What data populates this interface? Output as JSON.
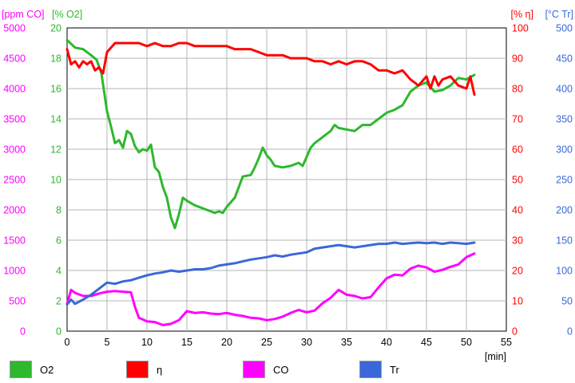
{
  "chart_data": {
    "type": "line",
    "x": {
      "label": "[min]",
      "range": [
        0,
        55
      ],
      "ticks": [
        "0",
        "5",
        "10",
        "15",
        "20",
        "25",
        "30",
        "35",
        "40",
        "45",
        "50",
        "55"
      ]
    },
    "axes": [
      {
        "id": "co",
        "title": "[ppm CO]",
        "side": "left",
        "color": "#ff00ff",
        "range": [
          0,
          5000
        ],
        "ticks": [
          "0",
          "500",
          "1000",
          "1500",
          "2000",
          "2500",
          "3000",
          "3500",
          "4000",
          "4500",
          "5000"
        ]
      },
      {
        "id": "o2",
        "title": "[% O2]",
        "side": "left",
        "color": "#2db82d",
        "range": [
          0,
          20
        ],
        "ticks": [
          "0",
          "2",
          "4",
          "6",
          "8",
          "10",
          "12",
          "14",
          "16",
          "18",
          "20"
        ]
      },
      {
        "id": "eta",
        "title": "[% η]",
        "side": "right",
        "color": "#ff0000",
        "range": [
          0,
          100
        ],
        "ticks": [
          "0",
          "10",
          "20",
          "30",
          "40",
          "50",
          "60",
          "70",
          "80",
          "90",
          "100"
        ]
      },
      {
        "id": "tr",
        "title": "[°C Tr]",
        "side": "right",
        "color": "#3a68d8",
        "range": [
          0,
          500
        ],
        "ticks": [
          "0",
          "50",
          "100",
          "150",
          "200",
          "250",
          "300",
          "350",
          "400",
          "450",
          "500"
        ]
      }
    ],
    "grid": true,
    "legend_position": "bottom",
    "series": [
      {
        "name": "O2",
        "axis": "o2",
        "color": "#2db82d",
        "points": [
          [
            0,
            19.2
          ],
          [
            1,
            18.7
          ],
          [
            2,
            18.6
          ],
          [
            3,
            18.2
          ],
          [
            3.7,
            17.9
          ],
          [
            4.3,
            17.0
          ],
          [
            5,
            14.5
          ],
          [
            5.5,
            13.5
          ],
          [
            6,
            12.4
          ],
          [
            6.5,
            12.6
          ],
          [
            7,
            12.1
          ],
          [
            7.5,
            13.2
          ],
          [
            8,
            13.0
          ],
          [
            8.5,
            12.2
          ],
          [
            9,
            11.8
          ],
          [
            9.5,
            12.0
          ],
          [
            10,
            11.9
          ],
          [
            10.5,
            12.3
          ],
          [
            11,
            10.8
          ],
          [
            11.5,
            10.5
          ],
          [
            12,
            9.5
          ],
          [
            12.5,
            8.8
          ],
          [
            13,
            7.5
          ],
          [
            13.5,
            6.8
          ],
          [
            14,
            7.7
          ],
          [
            14.5,
            8.8
          ],
          [
            15,
            8.6
          ],
          [
            16,
            8.3
          ],
          [
            17,
            8.1
          ],
          [
            18,
            7.9
          ],
          [
            18.5,
            7.8
          ],
          [
            19,
            7.9
          ],
          [
            19.5,
            7.8
          ],
          [
            20,
            8.2
          ],
          [
            21,
            8.8
          ],
          [
            21.5,
            9.5
          ],
          [
            22,
            10.2
          ],
          [
            23,
            10.3
          ],
          [
            23.5,
            10.8
          ],
          [
            24,
            11.4
          ],
          [
            24.5,
            12.1
          ],
          [
            25,
            11.6
          ],
          [
            25.5,
            11.3
          ],
          [
            26,
            10.9
          ],
          [
            27,
            10.8
          ],
          [
            28,
            10.9
          ],
          [
            29,
            11.1
          ],
          [
            29.5,
            10.9
          ],
          [
            30,
            11.5
          ],
          [
            30.5,
            12.1
          ],
          [
            31,
            12.4
          ],
          [
            32,
            12.8
          ],
          [
            33,
            13.2
          ],
          [
            33.5,
            13.6
          ],
          [
            34,
            13.4
          ],
          [
            35,
            13.3
          ],
          [
            36,
            13.2
          ],
          [
            37,
            13.6
          ],
          [
            38,
            13.6
          ],
          [
            39,
            14.0
          ],
          [
            40,
            14.4
          ],
          [
            41,
            14.6
          ],
          [
            42,
            14.9
          ],
          [
            43,
            15.8
          ],
          [
            44,
            16.2
          ],
          [
            45,
            16.4
          ],
          [
            46,
            15.8
          ],
          [
            47,
            15.9
          ],
          [
            48,
            16.2
          ],
          [
            49,
            16.7
          ],
          [
            50,
            16.6
          ],
          [
            51,
            16.9
          ]
        ]
      },
      {
        "name": "η",
        "axis": "eta",
        "color": "#ff0000",
        "points": [
          [
            0,
            93
          ],
          [
            0.5,
            88
          ],
          [
            1,
            89
          ],
          [
            1.5,
            87
          ],
          [
            2,
            89
          ],
          [
            2.5,
            88
          ],
          [
            3,
            89
          ],
          [
            3.5,
            86
          ],
          [
            4,
            87
          ],
          [
            4.5,
            85
          ],
          [
            5,
            92
          ],
          [
            6,
            95
          ],
          [
            7,
            95
          ],
          [
            8,
            95
          ],
          [
            9,
            95
          ],
          [
            10,
            94
          ],
          [
            11,
            95
          ],
          [
            12,
            94
          ],
          [
            13,
            94
          ],
          [
            14,
            95
          ],
          [
            15,
            95
          ],
          [
            16,
            94
          ],
          [
            17,
            94
          ],
          [
            18,
            94
          ],
          [
            19,
            94
          ],
          [
            20,
            94
          ],
          [
            21,
            93
          ],
          [
            22,
            93
          ],
          [
            23,
            93
          ],
          [
            24,
            92
          ],
          [
            25,
            91
          ],
          [
            26,
            91
          ],
          [
            27,
            91
          ],
          [
            28,
            90
          ],
          [
            29,
            90
          ],
          [
            30,
            90
          ],
          [
            31,
            89
          ],
          [
            32,
            89
          ],
          [
            33,
            88
          ],
          [
            34,
            89
          ],
          [
            35,
            88
          ],
          [
            36,
            89
          ],
          [
            37,
            89
          ],
          [
            38,
            88
          ],
          [
            39,
            86
          ],
          [
            40,
            86
          ],
          [
            41,
            85
          ],
          [
            42,
            86
          ],
          [
            43,
            83
          ],
          [
            44,
            81
          ],
          [
            45,
            84
          ],
          [
            45.5,
            80
          ],
          [
            46,
            84
          ],
          [
            46.5,
            81
          ],
          [
            47,
            83
          ],
          [
            48,
            84
          ],
          [
            49,
            81
          ],
          [
            50,
            80
          ],
          [
            50.5,
            84
          ],
          [
            51,
            78
          ]
        ]
      },
      {
        "name": "CO",
        "axis": "co",
        "color": "#ff00ff",
        "points": [
          [
            0,
            450
          ],
          [
            0.5,
            680
          ],
          [
            1,
            630
          ],
          [
            2,
            580
          ],
          [
            3,
            580
          ],
          [
            4,
            620
          ],
          [
            5,
            650
          ],
          [
            6,
            660
          ],
          [
            7,
            650
          ],
          [
            8,
            640
          ],
          [
            8.5,
            400
          ],
          [
            9,
            220
          ],
          [
            10,
            160
          ],
          [
            11,
            150
          ],
          [
            12,
            100
          ],
          [
            13,
            120
          ],
          [
            14,
            180
          ],
          [
            15,
            330
          ],
          [
            16,
            300
          ],
          [
            17,
            310
          ],
          [
            18,
            290
          ],
          [
            19,
            280
          ],
          [
            20,
            300
          ],
          [
            21,
            270
          ],
          [
            22,
            250
          ],
          [
            23,
            220
          ],
          [
            24,
            210
          ],
          [
            25,
            180
          ],
          [
            26,
            200
          ],
          [
            27,
            240
          ],
          [
            28,
            300
          ],
          [
            29,
            350
          ],
          [
            30,
            310
          ],
          [
            31,
            340
          ],
          [
            32,
            460
          ],
          [
            33,
            550
          ],
          [
            34,
            680
          ],
          [
            35,
            600
          ],
          [
            36,
            580
          ],
          [
            37,
            540
          ],
          [
            38,
            560
          ],
          [
            39,
            720
          ],
          [
            40,
            870
          ],
          [
            41,
            930
          ],
          [
            42,
            920
          ],
          [
            43,
            1030
          ],
          [
            44,
            1080
          ],
          [
            45,
            1050
          ],
          [
            46,
            980
          ],
          [
            47,
            1010
          ],
          [
            48,
            1060
          ],
          [
            49,
            1100
          ],
          [
            50,
            1220
          ],
          [
            51,
            1280
          ]
        ]
      },
      {
        "name": "Tr",
        "axis": "tr",
        "color": "#3a68d8",
        "points": [
          [
            0,
            44
          ],
          [
            0.5,
            52
          ],
          [
            1,
            45
          ],
          [
            2,
            52
          ],
          [
            3,
            60
          ],
          [
            4,
            70
          ],
          [
            5,
            80
          ],
          [
            6,
            78
          ],
          [
            7,
            82
          ],
          [
            8,
            84
          ],
          [
            9,
            88
          ],
          [
            10,
            92
          ],
          [
            11,
            95
          ],
          [
            12,
            97
          ],
          [
            13,
            100
          ],
          [
            14,
            98
          ],
          [
            15,
            100
          ],
          [
            16,
            102
          ],
          [
            17,
            102
          ],
          [
            18,
            104
          ],
          [
            19,
            108
          ],
          [
            20,
            110
          ],
          [
            21,
            112
          ],
          [
            22,
            115
          ],
          [
            23,
            118
          ],
          [
            24,
            120
          ],
          [
            25,
            122
          ],
          [
            26,
            125
          ],
          [
            27,
            123
          ],
          [
            28,
            126
          ],
          [
            29,
            128
          ],
          [
            30,
            130
          ],
          [
            31,
            136
          ],
          [
            32,
            138
          ],
          [
            33,
            140
          ],
          [
            34,
            142
          ],
          [
            35,
            140
          ],
          [
            36,
            138
          ],
          [
            37,
            140
          ],
          [
            38,
            142
          ],
          [
            39,
            144
          ],
          [
            40,
            144
          ],
          [
            41,
            146
          ],
          [
            42,
            144
          ],
          [
            43,
            145
          ],
          [
            44,
            146
          ],
          [
            45,
            145
          ],
          [
            46,
            146
          ],
          [
            47,
            144
          ],
          [
            48,
            146
          ],
          [
            49,
            145
          ],
          [
            50,
            144
          ],
          [
            51,
            146
          ]
        ]
      }
    ]
  }
}
